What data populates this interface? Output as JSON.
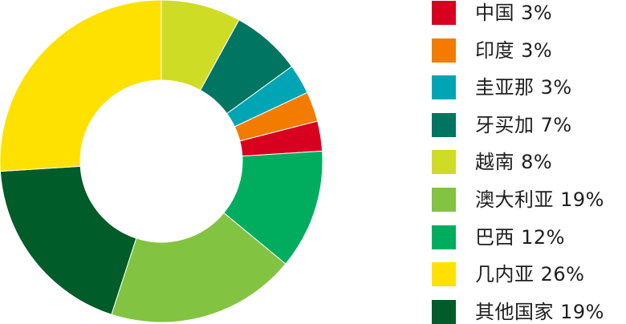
{
  "chart_data": {
    "type": "pie",
    "title": "",
    "categories": [
      "中国",
      "印度",
      "圭亚那",
      "牙买加",
      "越南",
      "澳大利亚",
      "巴西",
      "几内亚",
      "其他国家"
    ],
    "values": [
      3,
      3,
      3,
      7,
      8,
      19,
      12,
      26,
      19
    ],
    "unit": "%",
    "donut": true,
    "legend_position": "right",
    "slice_order_clockwise_from_top": [
      "越南",
      "牙买加",
      "圭亚那",
      "印度",
      "中国",
      "巴西",
      "澳大利亚",
      "其他国家",
      "几内亚"
    ],
    "colors": {
      "中国": "#d7001e",
      "印度": "#f37b00",
      "圭亚那": "#00a5b5",
      "牙买加": "#007561",
      "越南": "#cfdc25",
      "澳大利亚": "#82c341",
      "巴西": "#00ad5f",
      "几内亚": "#ffe100",
      "其他国家": "#005c28"
    }
  },
  "legend": {
    "items": [
      {
        "label": "中国 3%",
        "color": "#d7001e"
      },
      {
        "label": "印度 3%",
        "color": "#f37b00"
      },
      {
        "label": "圭亚那 3%",
        "color": "#00a5b5"
      },
      {
        "label": "牙买加 7%",
        "color": "#007561"
      },
      {
        "label": "越南 8%",
        "color": "#cfdc25"
      },
      {
        "label": "澳大利亚 19%",
        "color": "#82c341"
      },
      {
        "label": "巴西 12%",
        "color": "#00ad5f"
      },
      {
        "label": "几内亚 26%",
        "color": "#ffe100"
      },
      {
        "label": "其他国家 19%",
        "color": "#005c28"
      }
    ]
  }
}
